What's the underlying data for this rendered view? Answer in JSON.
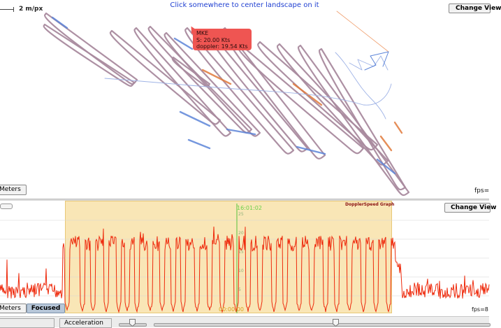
{
  "map": {
    "hint": "Click somewhere to center landscape on it",
    "scale_label": "2 m/px",
    "change_view_label": "Change View",
    "meters_label": "Meters",
    "fps_label": "fps="
  },
  "tooltip": {
    "name": "MKE",
    "speed": "S: 20.00 Kts",
    "doppler": "doppler: 19.54 Kts"
  },
  "graph": {
    "title": "DopplerSpeed Graph",
    "time_top": "16:01:02",
    "time_bottom": "00:00:00",
    "yticks": [
      "25",
      "20",
      "15",
      "10",
      "5"
    ],
    "change_view_label": "Change View",
    "meters_label": "Meters",
    "focused_label": "Focused",
    "fps_label": "fps=8"
  },
  "controls": {
    "acceleration_label": "Acceleration"
  },
  "colors": {
    "track_main": "#a98a9e",
    "track_fast": "#e07a3c",
    "track_slow": "#5d85d8",
    "track_thin": "#9fb3e6",
    "graph_line": "#ee2a0c",
    "focus_region": "#f9e6b6",
    "hint_text": "#1f3fd1"
  }
}
